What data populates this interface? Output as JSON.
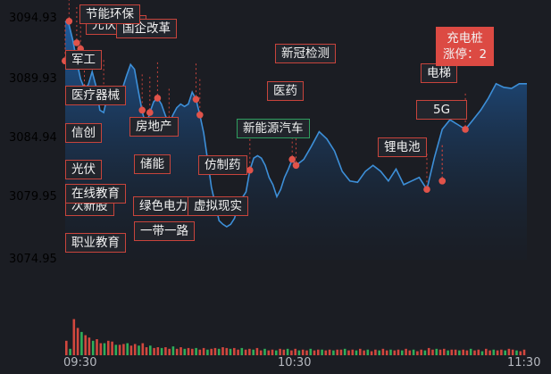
{
  "chart_data": {
    "type": "area",
    "title": "",
    "xlabel": "",
    "ylabel": "",
    "ylim": [
      3074.95,
      3094.93
    ],
    "y_ticks": [
      {
        "label": "3094.93",
        "value": 3094.93,
        "color": "#e0534a"
      },
      {
        "label": "3089.93",
        "value": 3089.93,
        "color": "#e0534a"
      },
      {
        "label": "3084.94",
        "value": 3084.94,
        "color": "#b5b8bf"
      },
      {
        "label": "3079.95",
        "value": 3079.95,
        "color": "#2fae5a"
      },
      {
        "label": "3074.95",
        "value": 3074.95,
        "color": "#2fae5a"
      }
    ],
    "x_ticks": [
      {
        "label": "09:30",
        "minute": 0
      },
      {
        "label": "10:30",
        "minute": 60
      },
      {
        "label": "11:30",
        "minute": 120
      }
    ],
    "x_range_minutes": [
      0,
      120
    ],
    "series": [
      {
        "x": [
          0,
          1,
          2,
          3,
          4,
          5,
          6,
          7,
          8,
          9,
          10,
          11,
          12,
          13,
          14,
          15,
          16,
          17,
          18,
          19,
          20,
          21,
          22,
          23,
          24,
          25,
          26,
          27,
          28,
          29,
          30,
          31,
          32,
          33,
          34,
          35,
          36,
          37,
          38,
          39,
          40,
          41,
          42,
          43,
          44,
          45,
          46,
          47,
          48,
          49,
          50,
          51,
          52,
          53,
          54,
          55,
          56,
          57,
          58,
          59,
          60,
          62,
          64,
          66,
          68,
          70,
          72,
          74,
          76,
          78,
          80,
          82,
          84,
          86,
          88,
          90,
          92,
          94,
          96,
          98,
          100,
          102,
          104,
          106,
          108,
          110,
          112,
          114,
          116,
          118,
          120
        ],
        "y": [
          3094.8,
          3094.5,
          3093.2,
          3091.5,
          3090.0,
          3089.2,
          3089.5,
          3090.6,
          3089.4,
          3087.4,
          3087.2,
          3088.6,
          3088.7,
          3088.1,
          3088.8,
          3089.3,
          3090.3,
          3091.2,
          3090.8,
          3089.0,
          3087.3,
          3086.1,
          3087.2,
          3088.1,
          3088.4,
          3087.9,
          3087.0,
          3086.2,
          3087.0,
          3087.6,
          3087.9,
          3087.7,
          3087.9,
          3088.9,
          3088.3,
          3087.0,
          3085.5,
          3083.3,
          3081.0,
          3079.6,
          3078.2,
          3077.9,
          3077.7,
          3077.9,
          3078.4,
          3079.5,
          3080.1,
          3080.6,
          3082.4,
          3083.4,
          3083.6,
          3083.4,
          3082.8,
          3081.8,
          3081.2,
          3080.2,
          3080.8,
          3081.8,
          3082.5,
          3083.3,
          3082.8,
          3083.3,
          3084.4,
          3085.6,
          3085.0,
          3084.0,
          3082.3,
          3081.5,
          3081.4,
          3082.3,
          3082.8,
          3082.3,
          3081.5,
          3082.5,
          3081.2,
          3081.5,
          3081.8,
          3080.8,
          3083.5,
          3085.8,
          3086.6,
          3086.2,
          3085.8,
          3086.6,
          3087.4,
          3088.4,
          3089.6,
          3089.3,
          3089.2,
          3089.6,
          3089.6
        ],
        "color": "#3d8fd8"
      }
    ],
    "volume_bars": [
      18,
      8,
      45,
      34,
      29,
      25,
      22,
      18,
      20,
      15,
      15,
      18,
      17,
      13,
      13,
      14,
      15,
      12,
      14,
      12,
      15,
      10,
      12,
      9,
      10,
      9,
      10,
      8,
      11,
      8,
      10,
      8,
      9,
      8,
      9,
      7,
      9,
      7,
      8,
      9,
      8,
      10,
      9,
      8,
      9,
      7,
      9,
      7,
      8,
      7,
      9,
      6,
      8,
      6,
      7,
      6,
      8,
      7,
      8,
      6,
      8,
      6,
      7,
      6,
      8,
      6,
      7,
      7,
      6,
      7,
      6,
      7,
      7,
      8,
      6,
      7,
      6,
      8,
      6,
      7,
      5,
      7,
      6,
      8,
      6,
      7,
      6,
      7,
      6,
      8,
      6,
      7,
      5,
      7,
      6,
      9,
      7,
      8,
      7,
      8,
      6,
      7,
      7,
      6,
      7,
      6,
      8,
      6,
      7,
      5,
      8,
      6,
      7,
      6,
      7,
      6,
      8,
      7,
      6,
      5,
      7
    ],
    "volume_max": 100,
    "annotations": [
      {
        "label": "节能环保",
        "minute": 1,
        "value": 3094.8
      },
      {
        "label": "光伏导致",
        "minute": 3,
        "value": 3093.0
      },
      {
        "label": "国企改革",
        "minute": 4,
        "value": 3092.5
      },
      {
        "label": "军工",
        "minute": 5,
        "value": 3089.2
      },
      {
        "label": "医疗器械",
        "minute": 10,
        "value": 3088.6
      },
      {
        "label": "信创",
        "minute": 0,
        "value": 3091.5
      },
      {
        "label": "光伏",
        "minute": 0,
        "value": 3091.5
      },
      {
        "label": "在线教育",
        "minute": 0,
        "value": 3091.5
      },
      {
        "label": "次新股",
        "minute": 0,
        "value": 3091.5
      },
      {
        "label": "职业教育",
        "minute": 0,
        "value": 3091.5
      },
      {
        "label": "房地产",
        "minute": 20,
        "value": 3087.4
      },
      {
        "label": "储能",
        "minute": 22,
        "value": 3087.2
      },
      {
        "label": "绿色电力",
        "minute": 24,
        "value": 3088.4
      },
      {
        "label": "一带一路",
        "minute": 27,
        "value": 3086.2
      },
      {
        "label": "仿制药",
        "minute": 35,
        "value": 3087.0
      },
      {
        "label": "虚拟现实",
        "minute": 34,
        "value": 3088.3
      },
      {
        "label": "新能源汽车",
        "minute": 48,
        "value": 3082.4
      },
      {
        "label": "新冠检测",
        "minute": 59,
        "value": 3083.3
      },
      {
        "label": "医药",
        "minute": 60,
        "value": 3082.8
      },
      {
        "label": "锂电池",
        "minute": 94,
        "value": 3080.8
      },
      {
        "label": "5G",
        "minute": 98,
        "value": 3081.5
      },
      {
        "label": "电梯",
        "minute": 98,
        "value": 3081.5
      },
      {
        "label": "充电桩",
        "minute": 104,
        "value": 3085.8
      }
    ],
    "highlight": {
      "title": "充电桩",
      "subtitle": "涨停：2"
    }
  }
}
